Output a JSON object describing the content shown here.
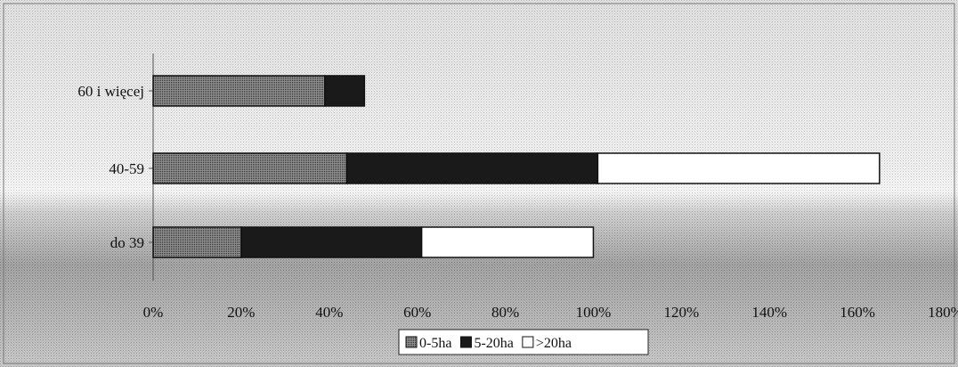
{
  "chart_data": {
    "type": "bar",
    "orientation": "horizontal",
    "stacked": true,
    "title": "",
    "xlabel": "",
    "ylabel": "",
    "xlim": [
      0,
      180
    ],
    "x_tick_labels": [
      "0%",
      "20%",
      "40%",
      "60%",
      "80%",
      "100%",
      "120%",
      "140%",
      "160%",
      "180%"
    ],
    "x_tick_values": [
      0,
      20,
      40,
      60,
      80,
      100,
      120,
      140,
      160,
      180
    ],
    "categories": [
      "60 i więcej",
      "40-59",
      "do 39"
    ],
    "series": [
      {
        "name": "0-5ha",
        "values": [
          39,
          44,
          20
        ],
        "color": "#8a8a8a"
      },
      {
        "name": "5-20ha",
        "values": [
          9,
          57,
          41
        ],
        "color": "#1a1a1a"
      },
      {
        "name": ">20ha",
        "values": [
          0,
          64,
          39
        ],
        "color": "#ffffff"
      }
    ],
    "grid": false,
    "legend_position": "bottom"
  }
}
